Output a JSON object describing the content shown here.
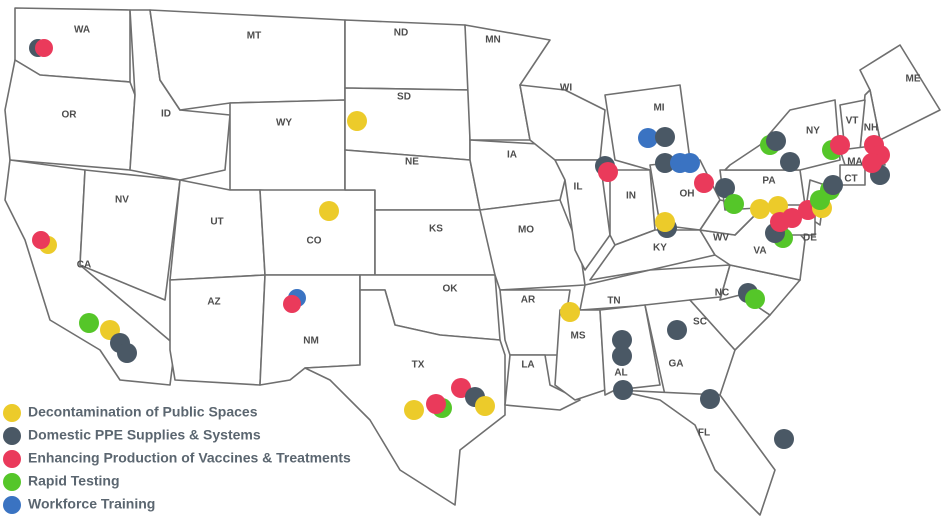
{
  "map": {
    "states": [
      "WA",
      "MT",
      "ND",
      "MN",
      "ME",
      "OR",
      "ID",
      "SD",
      "WI",
      "MI",
      "NY",
      "VT",
      "NH",
      "WY",
      "IA",
      "MA",
      "CT",
      "NE",
      "IL",
      "PA",
      "NV",
      "OH",
      "IN",
      "UT",
      "CO",
      "KS",
      "MO",
      "WV",
      "KY",
      "VA",
      "DE",
      "CA",
      "AR",
      "NC",
      "TN",
      "SC",
      "AZ",
      "OK",
      "NM",
      "MS",
      "GA",
      "TX",
      "LA",
      "AL",
      "FL"
    ],
    "legend": [
      {
        "name": "Decontamination of Public Spaces",
        "color": "#eccb2a"
      },
      {
        "name": "Domestic PPE Supplies & Systems",
        "color": "#4a5865"
      },
      {
        "name": "Enhancing Production of Vaccines & Treatments",
        "color": "#ea3a5b"
      },
      {
        "name": "Rapid Testing",
        "color": "#55c629"
      },
      {
        "name": "Workforce Training",
        "color": "#3a73c2"
      }
    ]
  }
}
